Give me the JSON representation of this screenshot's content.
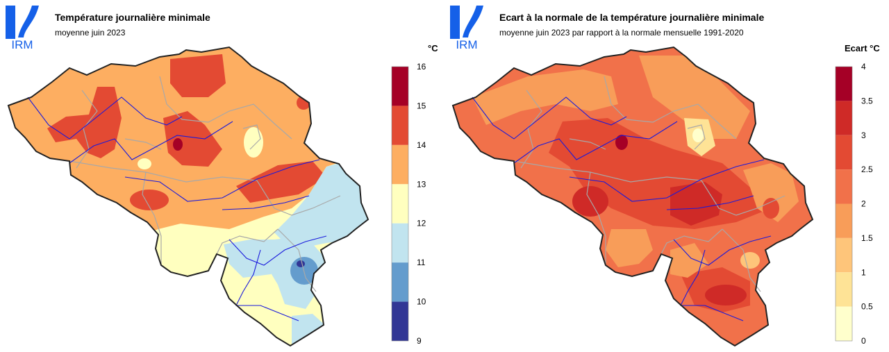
{
  "logo_text": "IRM",
  "left": {
    "title": "Température journalière minimale",
    "subtitle": "moyenne juin 2023",
    "unit": "°C",
    "legend": [
      {
        "label": "16",
        "color": "#a50026"
      },
      {
        "label": "15",
        "color": "#e34a33"
      },
      {
        "label": "14",
        "color": "#fdae61"
      },
      {
        "label": "13",
        "color": "#ffffbf"
      },
      {
        "label": "12",
        "color": "#c1e4ef"
      },
      {
        "label": "11",
        "color": "#649ccd"
      },
      {
        "label": "10",
        "color": "#313695"
      },
      {
        "label": "9",
        "color": ""
      }
    ]
  },
  "right": {
    "title": "Ecart à la normale de la température journalière minimale",
    "subtitle": "moyenne juin 2023 par rapport à la normale mensuelle 1991-2020",
    "unit": "Ecart °C",
    "legend": [
      {
        "label": "4",
        "color": "#a50026"
      },
      {
        "label": "3.5",
        "color": "#cf2a27"
      },
      {
        "label": "3",
        "color": "#e34a33"
      },
      {
        "label": "2.5",
        "color": "#f1714a"
      },
      {
        "label": "2",
        "color": "#f89d59"
      },
      {
        "label": "1.5",
        "color": "#fec57a"
      },
      {
        "label": "1",
        "color": "#fee396"
      },
      {
        "label": "0.5",
        "color": "#ffffcc"
      },
      {
        "label": "0",
        "color": ""
      }
    ]
  },
  "colors": {
    "logo_blue": "#1560e8",
    "river": "#1a1adc",
    "border": "#222222",
    "province": "#a8a8a8"
  }
}
